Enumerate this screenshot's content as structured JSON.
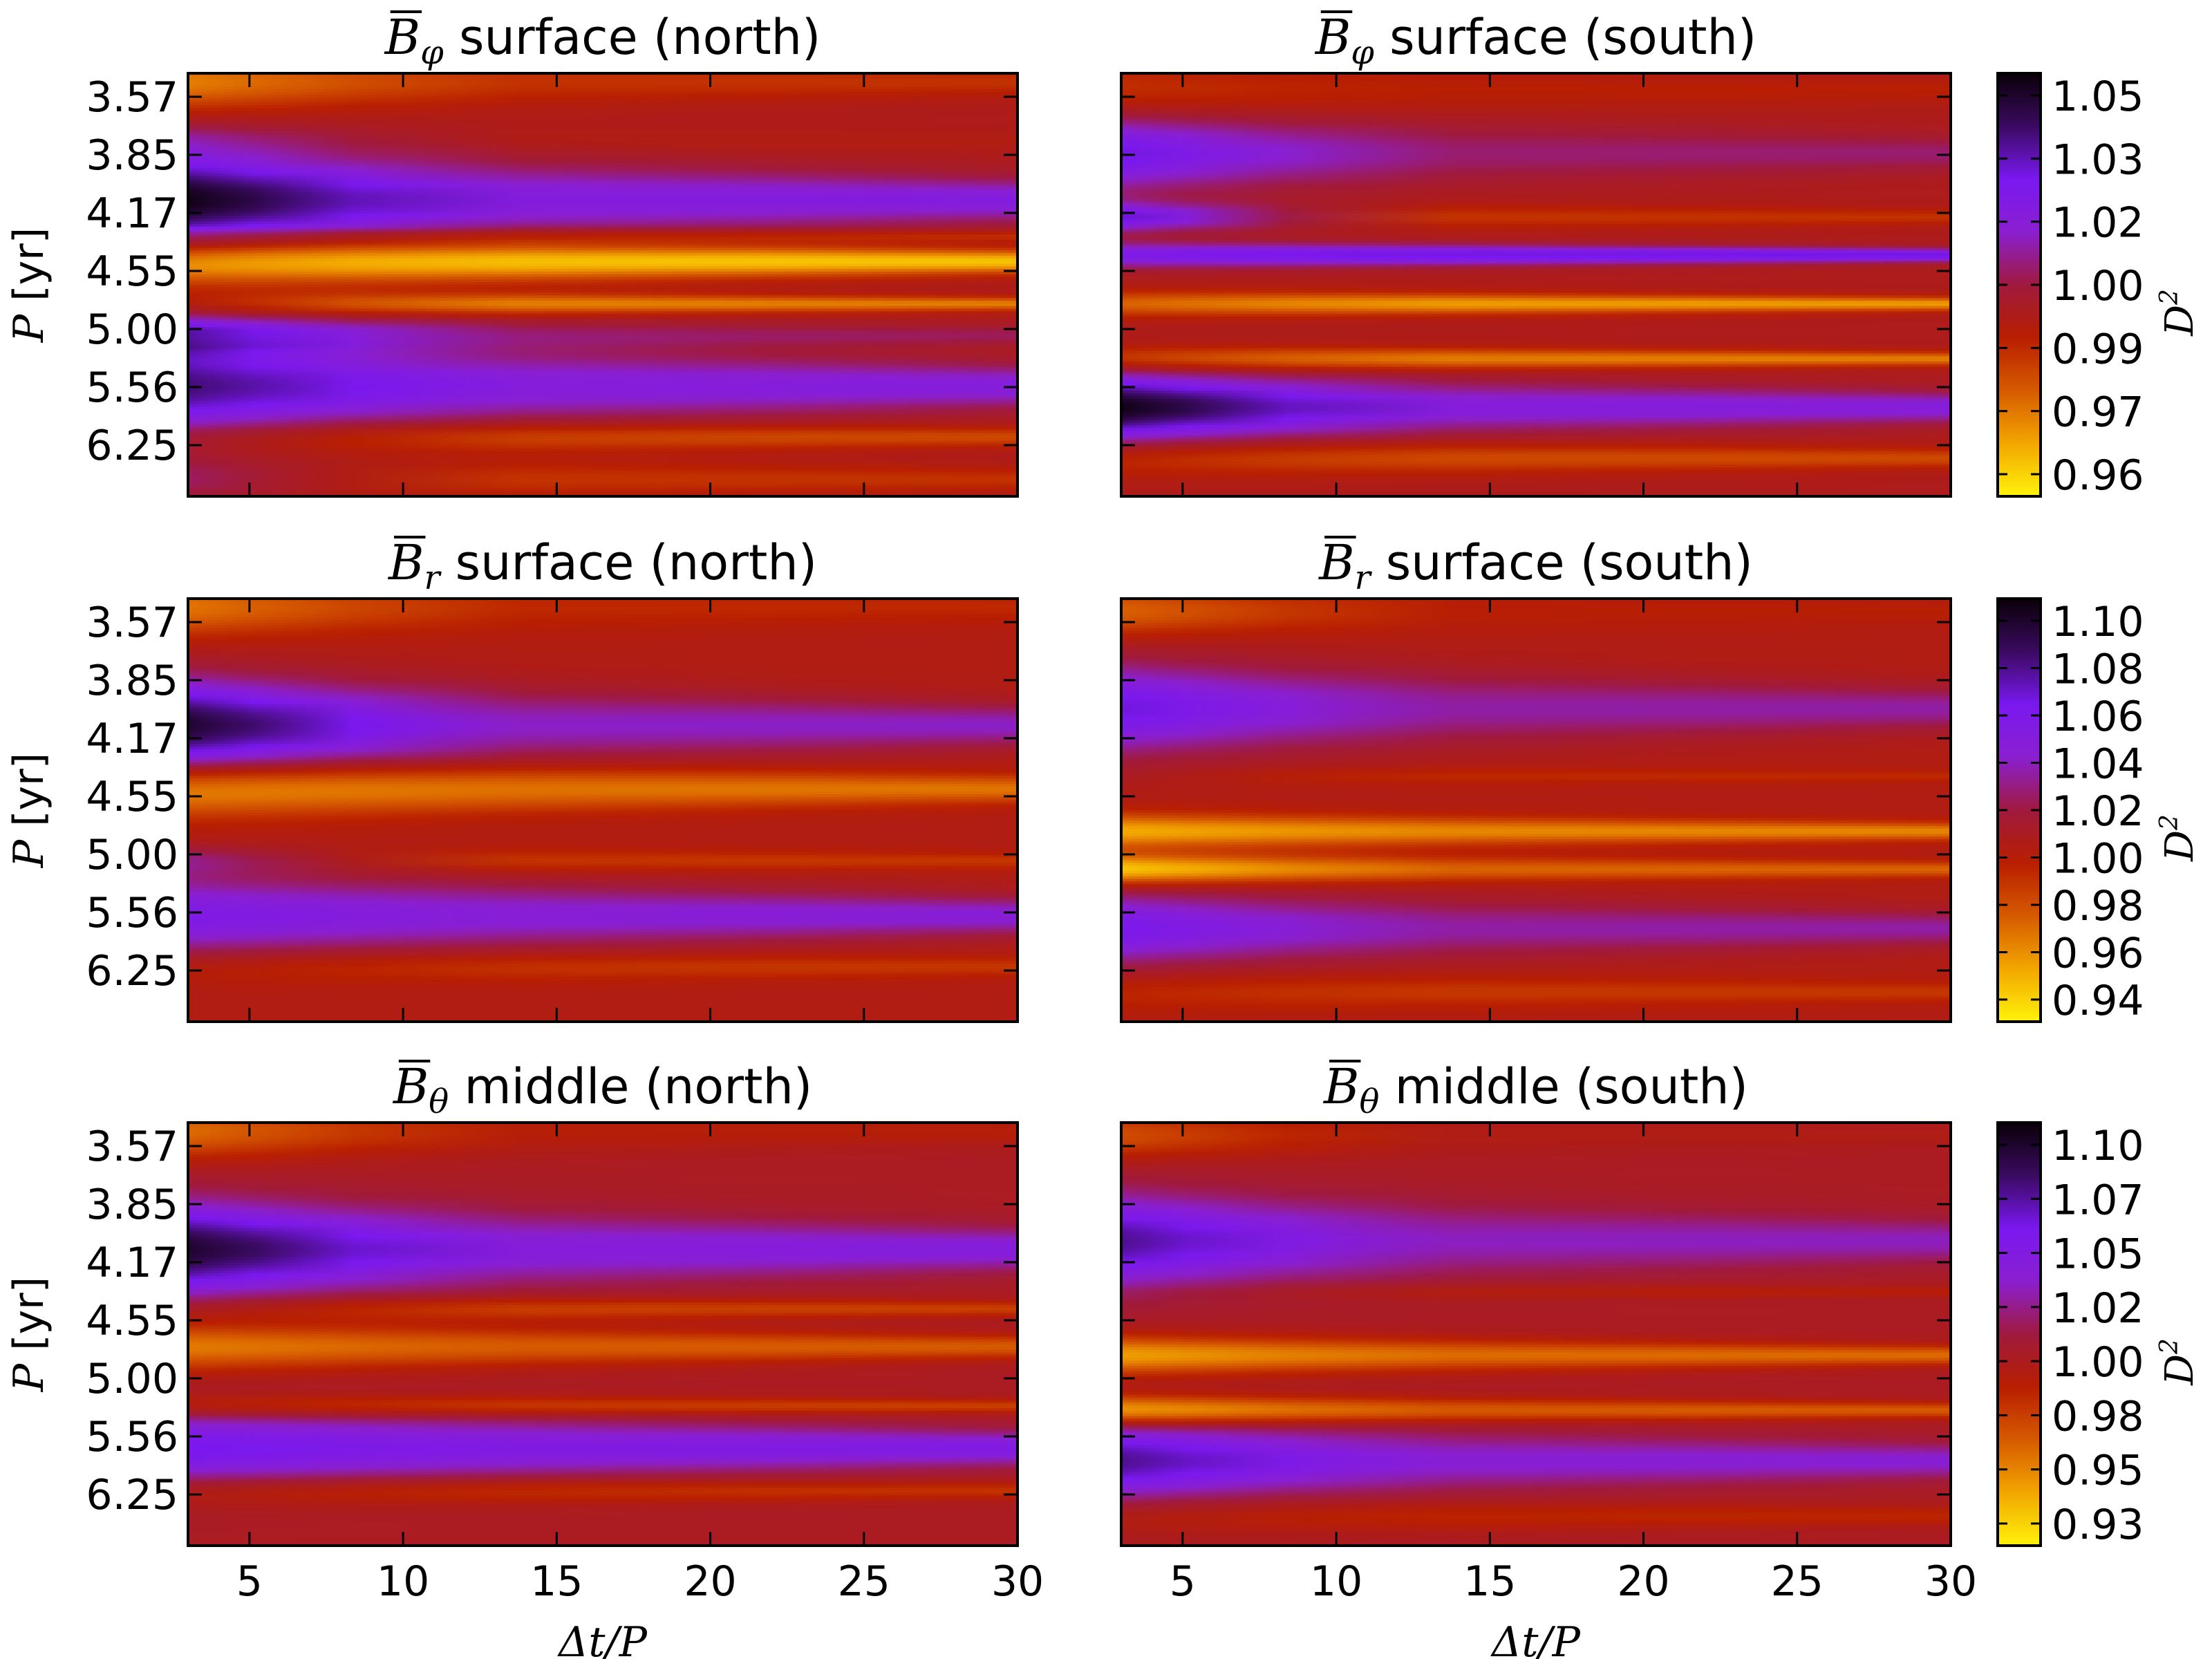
{
  "chart_data": [
    {
      "type": "heatmap",
      "title_symbol": "B",
      "title_subscript": "φ",
      "title_text": "surface (north)",
      "ylabel": "P [yr]",
      "xlabel": "",
      "x_range": [
        3,
        30
      ],
      "x_ticks": [
        5,
        10,
        15,
        20,
        25,
        30
      ],
      "x_tick_labels_shown": false,
      "y_tick_labels": [
        "3.57",
        "3.85",
        "4.17",
        "4.55",
        "5.00",
        "5.56",
        "6.25"
      ],
      "y_tick_labels_shown": true,
      "row_colorbar": 0,
      "bands": [
        {
          "y": 0.02,
          "value": 0.985,
          "sigma": 0.06,
          "edge": 0.975,
          "tight": 0.99
        },
        {
          "y": 0.16,
          "value": 0.995,
          "sigma": 0.04,
          "edge": 1.01,
          "tight": 0.998
        },
        {
          "y": 0.3,
          "value": 1.035,
          "sigma": 0.1,
          "edge": 1.058,
          "tight": 1.026
        },
        {
          "y": 0.385,
          "value": 0.985,
          "sigma": 0.018,
          "edge": 1.0,
          "tight": 0.99
        },
        {
          "y": 0.445,
          "value": 0.96,
          "sigma": 0.05,
          "edge": 0.965,
          "tight": 0.963
        },
        {
          "y": 0.545,
          "value": 0.985,
          "sigma": 0.025,
          "edge": 0.995,
          "tight": 0.975
        },
        {
          "y": 0.62,
          "value": 1.02,
          "sigma": 0.04,
          "edge": 1.035,
          "tight": 1.01
        },
        {
          "y": 0.74,
          "value": 1.025,
          "sigma": 0.1,
          "edge": 1.045,
          "tight": 1.025
        },
        {
          "y": 0.86,
          "value": 0.985,
          "sigma": 0.04,
          "edge": 0.995,
          "tight": 0.985
        },
        {
          "y": 0.96,
          "value": 0.99,
          "sigma": 0.05,
          "edge": 1.01,
          "tight": 0.99
        }
      ],
      "background": 1.0
    },
    {
      "type": "heatmap",
      "title_symbol": "B",
      "title_subscript": "φ",
      "title_text": "surface (south)",
      "ylabel": "",
      "xlabel": "",
      "x_range": [
        3,
        30
      ],
      "x_ticks": [
        5,
        10,
        15,
        20,
        25,
        30
      ],
      "x_tick_labels_shown": false,
      "y_tick_labels": [
        "3.57",
        "3.85",
        "4.17",
        "4.55",
        "5.00",
        "5.56",
        "6.25"
      ],
      "y_tick_labels_shown": false,
      "row_colorbar": 0,
      "bands": [
        {
          "y": 0.04,
          "value": 0.995,
          "sigma": 0.06,
          "edge": 0.99,
          "tight": 0.995
        },
        {
          "y": 0.19,
          "value": 1.015,
          "sigma": 0.08,
          "edge": 1.035,
          "tight": 1.012
        },
        {
          "y": 0.34,
          "value": 0.995,
          "sigma": 0.03,
          "edge": 1.035,
          "tight": 0.99
        },
        {
          "y": 0.43,
          "value": 1.03,
          "sigma": 0.025,
          "edge": 1.03,
          "tight": 1.035
        },
        {
          "y": 0.545,
          "value": 0.975,
          "sigma": 0.025,
          "edge": 0.98,
          "tight": 0.97
        },
        {
          "y": 0.675,
          "value": 0.98,
          "sigma": 0.025,
          "edge": 0.985,
          "tight": 0.975
        },
        {
          "y": 0.79,
          "value": 1.03,
          "sigma": 0.07,
          "edge": 1.058,
          "tight": 1.025
        },
        {
          "y": 0.91,
          "value": 0.99,
          "sigma": 0.04,
          "edge": 0.99,
          "tight": 0.985
        }
      ],
      "background": 1.0
    },
    {
      "type": "heatmap",
      "title_symbol": "B",
      "title_subscript": "r",
      "title_text": "surface (north)",
      "ylabel": "P [yr]",
      "xlabel": "",
      "x_range": [
        3,
        30
      ],
      "x_ticks": [
        5,
        10,
        15,
        20,
        25,
        30
      ],
      "x_tick_labels_shown": false,
      "y_tick_labels": [
        "3.57",
        "3.85",
        "4.17",
        "4.55",
        "5.00",
        "5.56",
        "6.25"
      ],
      "y_tick_labels_shown": true,
      "row_colorbar": 1,
      "bands": [
        {
          "y": 0.02,
          "value": 0.985,
          "sigma": 0.06,
          "edge": 0.965,
          "tight": 0.99
        },
        {
          "y": 0.3,
          "value": 1.045,
          "sigma": 0.1,
          "edge": 1.09,
          "tight": 1.035
        },
        {
          "y": 0.45,
          "value": 0.97,
          "sigma": 0.06,
          "edge": 0.955,
          "tight": 0.965
        },
        {
          "y": 0.62,
          "value": 0.99,
          "sigma": 0.03,
          "edge": 1.02,
          "tight": 0.985
        },
        {
          "y": 0.75,
          "value": 1.04,
          "sigma": 0.09,
          "edge": 1.05,
          "tight": 1.04
        },
        {
          "y": 0.87,
          "value": 0.985,
          "sigma": 0.04,
          "edge": 0.99,
          "tight": 0.985
        }
      ],
      "background": 1.0
    },
    {
      "type": "heatmap",
      "title_symbol": "B",
      "title_subscript": "r",
      "title_text": "surface (south)",
      "ylabel": "",
      "xlabel": "",
      "x_range": [
        3,
        30
      ],
      "x_ticks": [
        5,
        10,
        15,
        20,
        25,
        30
      ],
      "x_tick_labels_shown": false,
      "y_tick_labels": [
        "3.57",
        "3.85",
        "4.17",
        "4.55",
        "5.00",
        "5.56",
        "6.25"
      ],
      "y_tick_labels_shown": false,
      "row_colorbar": 1,
      "bands": [
        {
          "y": 0.03,
          "value": 0.99,
          "sigma": 0.05,
          "edge": 0.97,
          "tight": 0.995
        },
        {
          "y": 0.26,
          "value": 1.035,
          "sigma": 0.1,
          "edge": 1.06,
          "tight": 1.03
        },
        {
          "y": 0.42,
          "value": 0.985,
          "sigma": 0.02,
          "edge": 1.0,
          "tight": 0.99
        },
        {
          "y": 0.55,
          "value": 0.965,
          "sigma": 0.035,
          "edge": 0.95,
          "tight": 0.96
        },
        {
          "y": 0.64,
          "value": 0.975,
          "sigma": 0.03,
          "edge": 0.94,
          "tight": 0.97
        },
        {
          "y": 0.78,
          "value": 1.035,
          "sigma": 0.08,
          "edge": 1.055,
          "tight": 1.03
        },
        {
          "y": 0.93,
          "value": 0.985,
          "sigma": 0.04,
          "edge": 0.99,
          "tight": 0.985
        }
      ],
      "background": 1.0
    },
    {
      "type": "heatmap",
      "title_symbol": "B",
      "title_subscript": "θ",
      "title_text": "middle (north)",
      "ylabel": "P [yr]",
      "xlabel": "Δt/P",
      "x_range": [
        3,
        30
      ],
      "x_ticks": [
        5,
        10,
        15,
        20,
        25,
        30
      ],
      "x_tick_labels_shown": true,
      "y_tick_labels": [
        "3.57",
        "3.85",
        "4.17",
        "4.55",
        "5.00",
        "5.56",
        "6.25"
      ],
      "y_tick_labels_shown": true,
      "row_colorbar": 2,
      "bands": [
        {
          "y": 0.02,
          "value": 0.985,
          "sigma": 0.06,
          "edge": 0.96,
          "tight": 0.99
        },
        {
          "y": 0.3,
          "value": 1.05,
          "sigma": 0.1,
          "edge": 1.09,
          "tight": 1.04
        },
        {
          "y": 0.44,
          "value": 0.975,
          "sigma": 0.03,
          "edge": 0.99,
          "tight": 0.975
        },
        {
          "y": 0.53,
          "value": 0.965,
          "sigma": 0.05,
          "edge": 0.955,
          "tight": 0.965
        },
        {
          "y": 0.67,
          "value": 0.975,
          "sigma": 0.025,
          "edge": 0.98,
          "tight": 0.975
        },
        {
          "y": 0.77,
          "value": 1.045,
          "sigma": 0.08,
          "edge": 1.055,
          "tight": 1.045
        },
        {
          "y": 0.87,
          "value": 0.98,
          "sigma": 0.035,
          "edge": 0.985,
          "tight": 0.98
        }
      ],
      "background": 1.0
    },
    {
      "type": "heatmap",
      "title_symbol": "B",
      "title_subscript": "θ",
      "title_text": "middle (south)",
      "ylabel": "",
      "xlabel": "Δt/P",
      "x_range": [
        3,
        30
      ],
      "x_ticks": [
        5,
        10,
        15,
        20,
        25,
        30
      ],
      "x_tick_labels_shown": true,
      "y_tick_labels": [
        "3.57",
        "3.85",
        "4.17",
        "4.55",
        "5.00",
        "5.56",
        "6.25"
      ],
      "y_tick_labels_shown": false,
      "row_colorbar": 2,
      "bands": [
        {
          "y": 0.03,
          "value": 0.99,
          "sigma": 0.05,
          "edge": 0.97,
          "tight": 0.995
        },
        {
          "y": 0.28,
          "value": 1.04,
          "sigma": 0.1,
          "edge": 1.07,
          "tight": 1.03
        },
        {
          "y": 0.4,
          "value": 0.985,
          "sigma": 0.02,
          "edge": 1.0,
          "tight": 0.99
        },
        {
          "y": 0.55,
          "value": 0.965,
          "sigma": 0.04,
          "edge": 0.945,
          "tight": 0.96
        },
        {
          "y": 0.68,
          "value": 0.97,
          "sigma": 0.03,
          "edge": 0.94,
          "tight": 0.965
        },
        {
          "y": 0.8,
          "value": 1.045,
          "sigma": 0.08,
          "edge": 1.07,
          "tight": 1.035
        },
        {
          "y": 0.93,
          "value": 0.985,
          "sigma": 0.04,
          "edge": 0.99,
          "tight": 0.985
        }
      ],
      "background": 1.0
    }
  ],
  "colorbars": [
    {
      "label": "D²",
      "label_base": "D",
      "label_sup": "2",
      "range": [
        0.955,
        1.06
      ],
      "ticks": [
        "1.05",
        "1.03",
        "1.02",
        "1.00",
        "0.99",
        "0.97",
        "0.96"
      ],
      "tick_values": [
        1.05,
        1.03,
        1.02,
        1.0,
        0.99,
        0.97,
        0.96
      ]
    },
    {
      "label": "D²",
      "label_base": "D",
      "label_sup": "2",
      "range": [
        0.93,
        1.1
      ],
      "ticks": [
        "1.10",
        "1.08",
        "1.06",
        "1.04",
        "1.02",
        "1.00",
        "0.98",
        "0.96",
        "0.94"
      ],
      "tick_values": [
        1.1,
        1.08,
        1.06,
        1.04,
        1.02,
        1.0,
        0.98,
        0.96,
        0.94
      ]
    },
    {
      "label": "D²",
      "label_base": "D",
      "label_sup": "2",
      "range": [
        0.92,
        1.1
      ],
      "ticks": [
        "1.10",
        "1.07",
        "1.05",
        "1.02",
        "1.00",
        "0.98",
        "0.95",
        "0.93"
      ],
      "tick_values": [
        1.1,
        1.07,
        1.05,
        1.02,
        1.0,
        0.98,
        0.95,
        0.93
      ]
    }
  ],
  "colormap": "gnuplot-like (yellow → orange → red → purple → black)",
  "colormap_stops": [
    "#fff20a",
    "#f2a600",
    "#d65a00",
    "#b81e00",
    "#a01a3e",
    "#8a1fd0",
    "#7a18f0",
    "#3a0a60",
    "#0a0008"
  ]
}
